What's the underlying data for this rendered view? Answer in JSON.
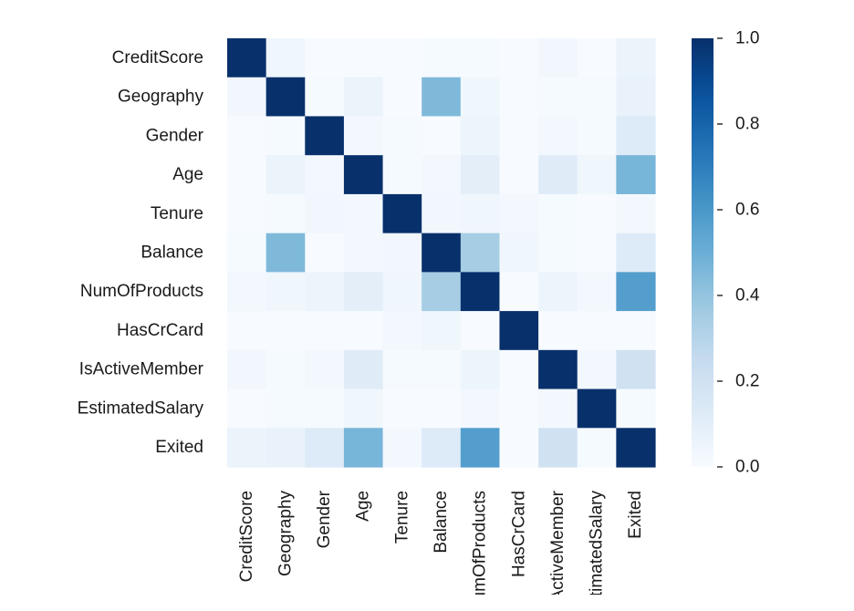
{
  "chart_data": {
    "type": "heatmap",
    "title": "",
    "xlabel": "",
    "ylabel": "",
    "row_labels": [
      "CreditScore",
      "Geography",
      "Gender",
      "Age",
      "Tenure",
      "Balance",
      "NumOfProducts",
      "HasCrCard",
      "IsActiveMember",
      "EstimatedSalary",
      "Exited"
    ],
    "column_labels": [
      "CreditScore",
      "Geography",
      "Gender",
      "Age",
      "Tenure",
      "Balance",
      "NumOfProducts",
      "HasCrCard",
      "IsActiveMember",
      "EstimatedSalary",
      "Exited"
    ],
    "values": [
      [
        1.0,
        0.04,
        0.0,
        0.0,
        0.0,
        0.01,
        0.01,
        0.0,
        0.03,
        0.0,
        0.06
      ],
      [
        0.03,
        1.0,
        0.01,
        0.06,
        0.0,
        0.45,
        0.04,
        0.0,
        0.01,
        0.01,
        0.07
      ],
      [
        0.0,
        0.01,
        1.0,
        0.02,
        0.01,
        0.0,
        0.05,
        0.0,
        0.02,
        0.01,
        0.13
      ],
      [
        0.0,
        0.06,
        0.02,
        1.0,
        0.01,
        0.02,
        0.1,
        0.0,
        0.12,
        0.04,
        0.47
      ],
      [
        0.0,
        0.01,
        0.03,
        0.02,
        1.0,
        0.03,
        0.04,
        0.02,
        0.01,
        0.0,
        0.02
      ],
      [
        0.01,
        0.45,
        0.0,
        0.02,
        0.03,
        1.0,
        0.35,
        0.04,
        0.01,
        0.0,
        0.13
      ],
      [
        0.02,
        0.04,
        0.05,
        0.1,
        0.04,
        0.35,
        1.0,
        0.0,
        0.05,
        0.02,
        0.57
      ],
      [
        0.0,
        0.0,
        0.0,
        0.0,
        0.02,
        0.04,
        0.0,
        1.0,
        0.0,
        0.0,
        0.0
      ],
      [
        0.03,
        0.01,
        0.02,
        0.12,
        0.01,
        0.01,
        0.05,
        0.0,
        1.0,
        0.02,
        0.2
      ],
      [
        0.0,
        0.01,
        0.01,
        0.04,
        0.0,
        0.0,
        0.02,
        0.0,
        0.02,
        1.0,
        0.01
      ],
      [
        0.06,
        0.07,
        0.13,
        0.47,
        0.02,
        0.13,
        0.57,
        0.0,
        0.2,
        0.01,
        1.0
      ]
    ],
    "colorbar": {
      "range": [
        0.0,
        1.0
      ],
      "ticks": [
        "0.0",
        "0.2",
        "0.4",
        "0.6",
        "0.8",
        "1.0"
      ],
      "colormap": "Blues",
      "low_color": "#f7fbff",
      "high_color": "#08306b"
    },
    "grid": false
  }
}
